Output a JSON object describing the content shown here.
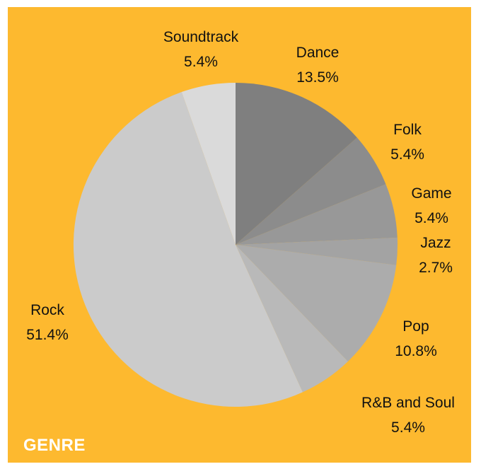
{
  "chart_data": {
    "type": "pie",
    "title": "GENRE",
    "background_color": "#fdb92f",
    "start_angle": "12 o'clock",
    "direction": "clockwise",
    "slices": [
      {
        "label": "Dance",
        "value": 13.5,
        "value_text": "13.5%",
        "color": "#7f7f7f"
      },
      {
        "label": "Folk",
        "value": 5.4,
        "value_text": "5.4%",
        "color": "#8c8c8c"
      },
      {
        "label": "Game",
        "value": 5.4,
        "value_text": "5.4%",
        "color": "#989898"
      },
      {
        "label": "Jazz",
        "value": 2.7,
        "value_text": "2.7%",
        "color": "#a3a3a3"
      },
      {
        "label": "Pop",
        "value": 10.8,
        "value_text": "10.8%",
        "color": "#acacac"
      },
      {
        "label": "R&B and Soul",
        "value": 5.4,
        "value_text": "5.4%",
        "color": "#b9b9b9"
      },
      {
        "label": "Rock",
        "value": 51.4,
        "value_text": "51.4%",
        "color": "#cbcbcb"
      },
      {
        "label": "Soundtrack",
        "value": 5.4,
        "value_text": "5.4%",
        "color": "#dadada"
      }
    ]
  }
}
